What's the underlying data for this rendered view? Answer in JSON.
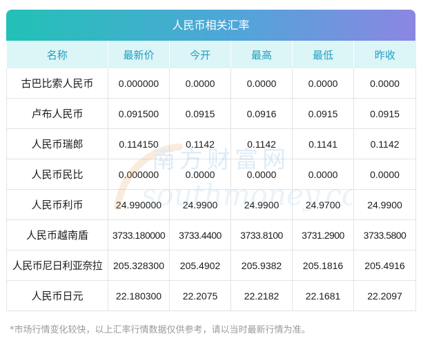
{
  "title": "人民币相关汇率",
  "columns": [
    "名称",
    "最新价",
    "今开",
    "最高",
    "最低",
    "昨收"
  ],
  "rows": [
    [
      "古巴比索人民币",
      "0.000000",
      "0.0000",
      "0.0000",
      "0.0000",
      "0.0000"
    ],
    [
      "卢布人民币",
      "0.091500",
      "0.0915",
      "0.0916",
      "0.0915",
      "0.0915"
    ],
    [
      "人民币瑞郎",
      "0.114150",
      "0.1142",
      "0.1142",
      "0.1141",
      "0.1142"
    ],
    [
      "人民币民比",
      "0.000000",
      "0.0000",
      "0.0000",
      "0.0000",
      "0.0000"
    ],
    [
      "人民币利币",
      "24.990000",
      "24.9900",
      "24.9900",
      "24.9700",
      "24.9900"
    ],
    [
      "人民币越南盾",
      "3733.180000",
      "3733.4400",
      "3733.8100",
      "3731.2900",
      "3733.5800"
    ],
    [
      "人民币尼日利亚奈拉",
      "205.328300",
      "205.4902",
      "205.9382",
      "205.1816",
      "205.4916"
    ],
    [
      "人民币日元",
      "22.180300",
      "22.2075",
      "22.2182",
      "22.1681",
      "22.2097"
    ]
  ],
  "note": "*市场行情变化较快，以上汇率行情数据仅供参考，请以当时最新行情为准。",
  "watermark": {
    "cn": "南方财富网",
    "en": "southmoney.com"
  },
  "colors": {
    "header_text": "#1f9ec1",
    "header_bg": "#dcf5f7",
    "title_start": "#22c1b6",
    "title_end": "#8b86e2"
  }
}
